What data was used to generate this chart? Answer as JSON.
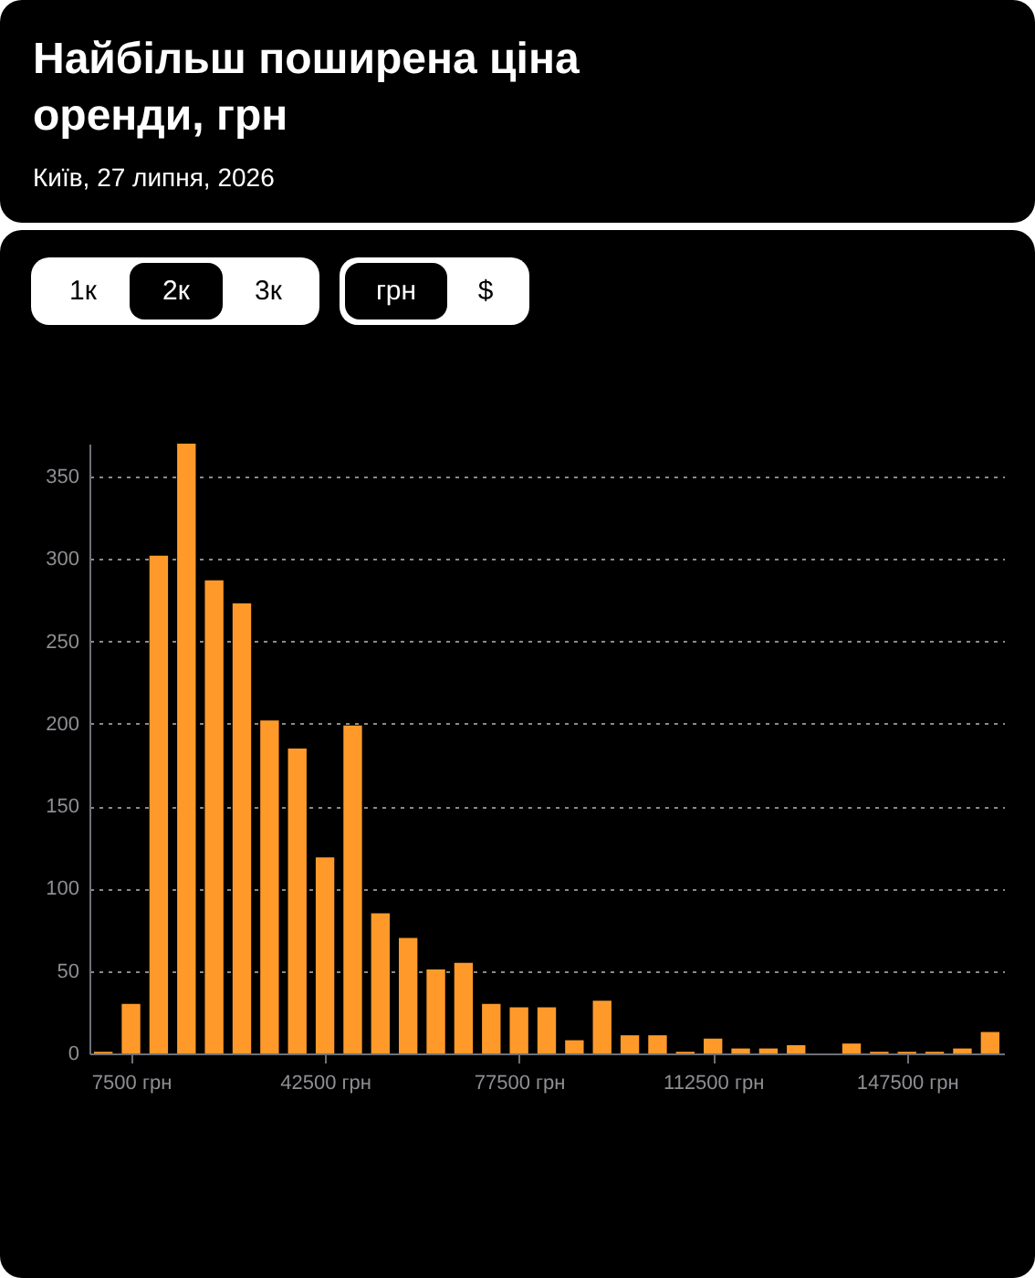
{
  "chart_data": {
    "type": "histogram",
    "title": "Найбільш поширена ціна оренди, грн",
    "subtitle": "Київ, 27 липня, 2026",
    "annotations": [
      "1к",
      "2к",
      "3к",
      "грн",
      "$"
    ],
    "bins": [
      0,
      5000,
      10000,
      15000,
      20000,
      25000,
      30000,
      35000,
      40000,
      45000,
      50000,
      55000,
      60000,
      65000,
      70000,
      75000,
      80000,
      85000,
      90000,
      95000,
      100000,
      105000,
      110000,
      115000,
      120000,
      125000,
      130000,
      135000,
      140000,
      145000,
      150000,
      155000,
      160000,
      165000
    ],
    "values": [
      1,
      30,
      302,
      370,
      287,
      273,
      202,
      185,
      119,
      199,
      85,
      70,
      51,
      55,
      30,
      28,
      28,
      8,
      32,
      11,
      11,
      1,
      9,
      3,
      3,
      5,
      0,
      6,
      1,
      1,
      1,
      3,
      13
    ],
    "color": "#ff9a2a",
    "xlim": [
      0,
      165000
    ],
    "xticks": [
      {
        "value": 7500,
        "label": "7500 грн"
      },
      {
        "value": 42500,
        "label": "42500 грн"
      },
      {
        "value": 77500,
        "label": "77500 грн"
      },
      {
        "value": 112500,
        "label": "112500 грн"
      },
      {
        "value": 147500,
        "label": "147500 грн"
      }
    ],
    "ylim": [
      0,
      370
    ],
    "yticks": [
      0,
      50,
      100,
      150,
      200,
      250,
      300,
      350
    ],
    "grid": "y"
  }
}
